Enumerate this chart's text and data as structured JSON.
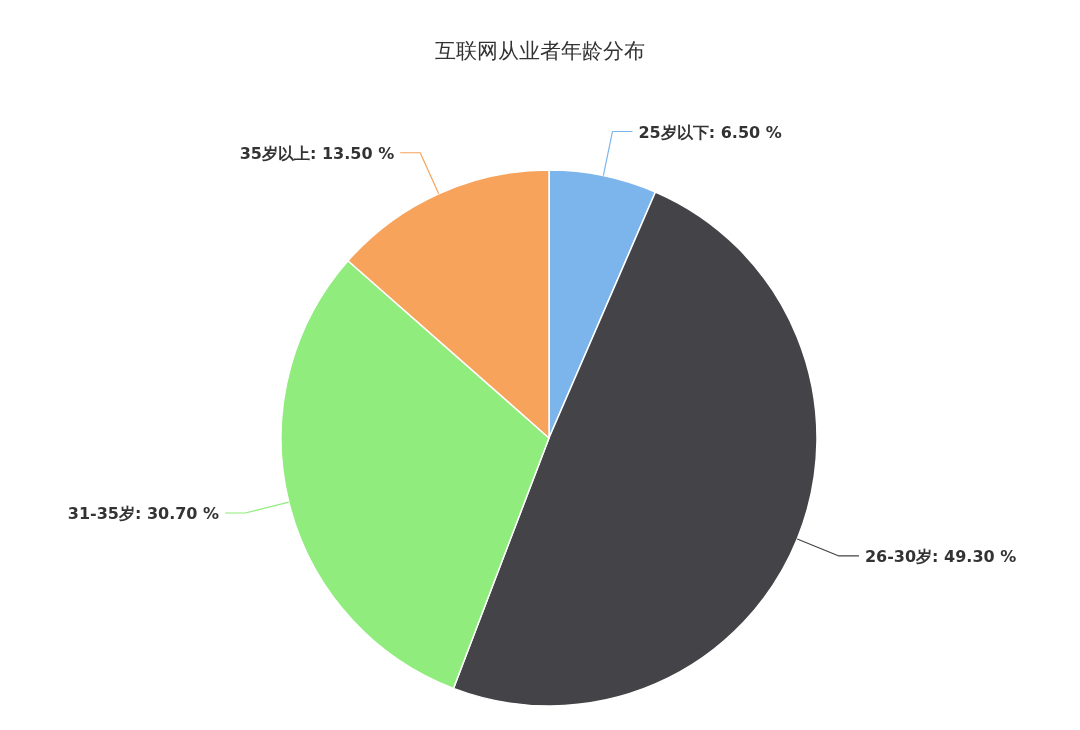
{
  "chart_data": {
    "type": "pie",
    "title": "互联网从业者年龄分布",
    "categories": [
      "25岁以下",
      "26-30岁",
      "31-35岁",
      "35岁以上"
    ],
    "values": [
      6.5,
      49.3,
      30.7,
      13.5
    ],
    "colors": [
      "#7cb5ec",
      "#434348",
      "#90ed7d",
      "#f7a35c"
    ],
    "value_labels": [
      ": 6.50 %",
      ": 49.30 %",
      ": 30.70 %",
      ": 13.50 %"
    ]
  }
}
